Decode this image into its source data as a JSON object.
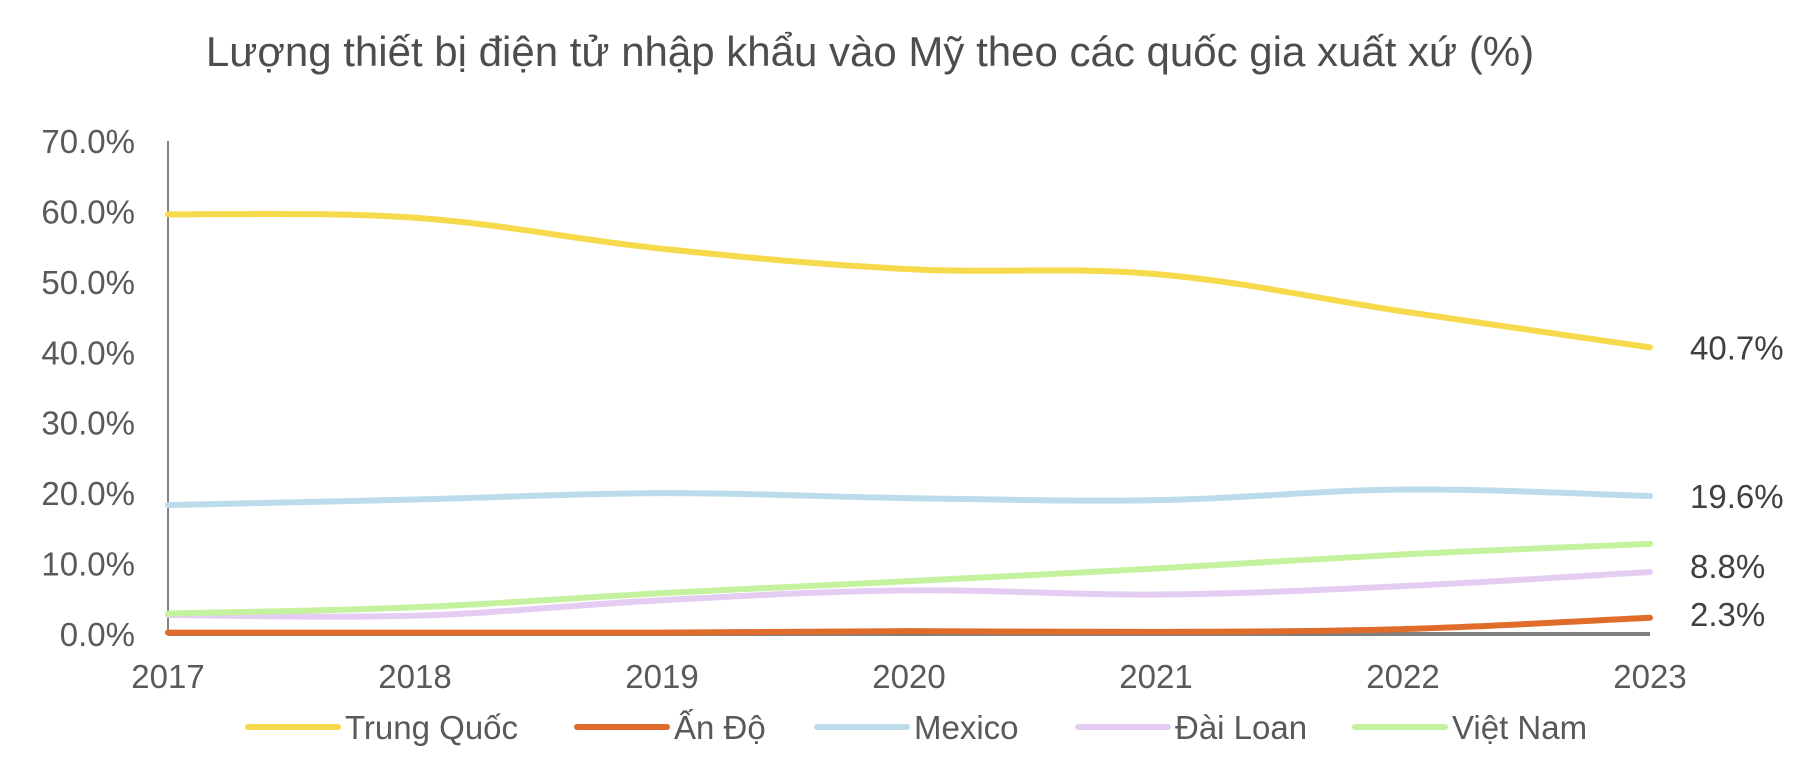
{
  "chart_data": {
    "type": "line",
    "title": "Lượng thiết bị điện tử nhập khẩu vào Mỹ theo các quốc gia xuất xứ (%)",
    "xlabel": "",
    "ylabel": "",
    "x": [
      2017,
      2018,
      2019,
      2020,
      2021,
      2022,
      2023
    ],
    "x_tick_labels": [
      "2017",
      "2018",
      "2019",
      "2020",
      "2021",
      "2022",
      "2023"
    ],
    "ylim": [
      0,
      70
    ],
    "y_ticks": [
      0,
      10,
      20,
      30,
      40,
      50,
      60,
      70
    ],
    "y_tick_labels": [
      "0.0%",
      "10.0%",
      "20.0%",
      "30.0%",
      "40.0%",
      "50.0%",
      "60.0%",
      "70.0%"
    ],
    "grid": false,
    "legend_position": "bottom",
    "series": [
      {
        "name": "Trung Quốc",
        "color": "#f7d94c",
        "values": [
          59.6,
          59.1,
          54.7,
          51.8,
          51.1,
          45.8,
          40.7
        ],
        "end_label": "40.7%"
      },
      {
        "name": "Ấn Độ",
        "color": "#e06c2c",
        "values": [
          0.2,
          0.2,
          0.2,
          0.4,
          0.3,
          0.7,
          2.3
        ],
        "end_label": "2.3%"
      },
      {
        "name": "Mexico",
        "color": "#bcdcec",
        "values": [
          18.3,
          19.1,
          20.0,
          19.3,
          19.0,
          20.5,
          19.6
        ],
        "end_label": "19.6%"
      },
      {
        "name": "Đài Loan",
        "color": "#e5ccf2",
        "values": [
          2.7,
          2.6,
          4.8,
          6.2,
          5.6,
          6.8,
          8.8
        ],
        "end_label": "8.8%"
      },
      {
        "name": "Việt Nam",
        "color": "#c5f29e",
        "values": [
          2.9,
          3.8,
          5.8,
          7.5,
          9.3,
          11.3,
          12.8
        ],
        "end_label": ""
      }
    ]
  }
}
